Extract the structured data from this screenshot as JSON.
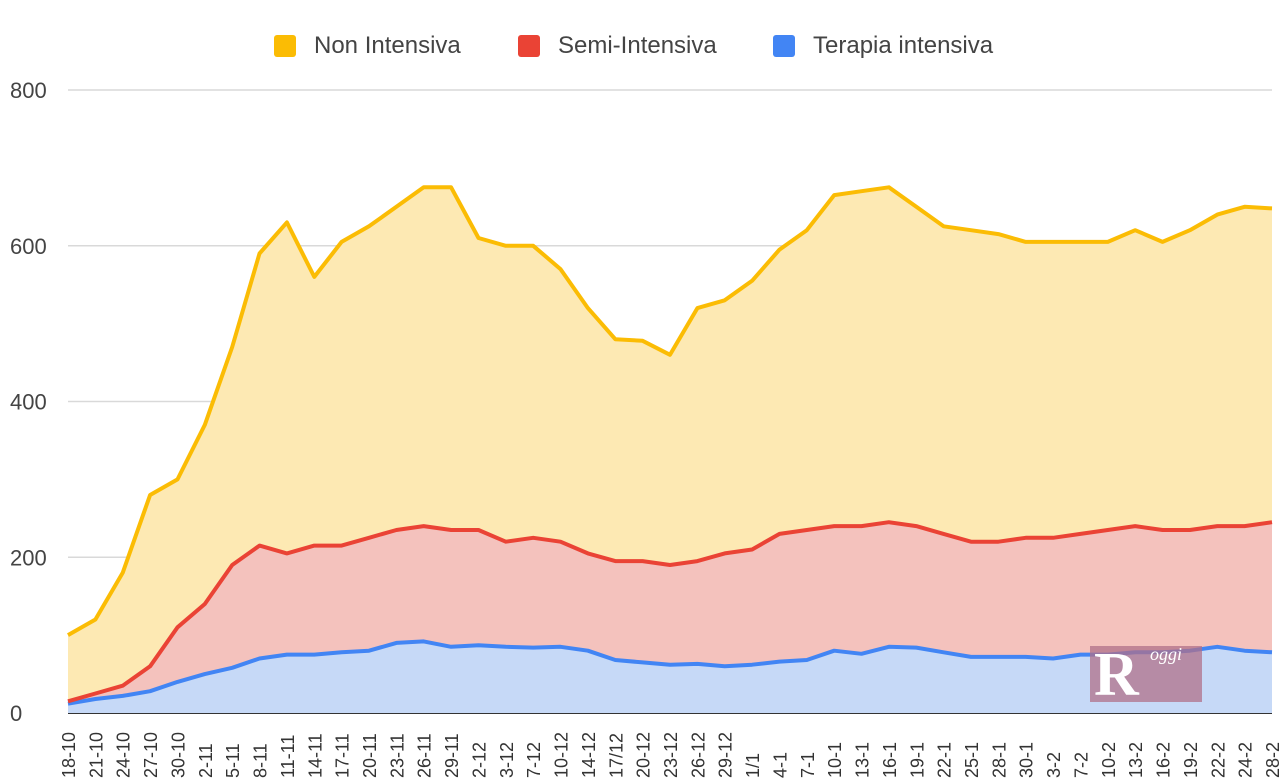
{
  "chart_data": {
    "type": "area",
    "stacked": true,
    "title": "",
    "xlabel": "",
    "ylabel": "",
    "ylim": [
      0,
      800
    ],
    "yticks": [
      0,
      200,
      400,
      600,
      800
    ],
    "grid": true,
    "legend_position": "top",
    "x_tick_labels": [
      "18-10",
      "21-10",
      "24-10",
      "27-10",
      "30-10",
      "2-11",
      "5-11",
      "8-11",
      "11-11",
      "14-11",
      "17-11",
      "20-11",
      "23-11",
      "26-11",
      "29-11",
      "2-12",
      "3-12",
      "7-12",
      "10-12",
      "14-12",
      "17/12",
      "20-12",
      "23-12",
      "26-12",
      "29-12",
      "1/1",
      "4-1",
      "7-1",
      "10-1",
      "13-1",
      "16-1",
      "19-1",
      "22-1",
      "25-1",
      "28-1",
      "30-1",
      "3-2",
      "7-2",
      "10-2",
      "13-2",
      "16-2",
      "19-2",
      "22-2",
      "24-2",
      "28-2"
    ],
    "series": [
      {
        "name": "Terapia intensiva",
        "color": "#4285f4",
        "fill": "#c6d9f7",
        "values": [
          12,
          18,
          22,
          28,
          40,
          50,
          58,
          70,
          75,
          75,
          78,
          80,
          90,
          92,
          85,
          87,
          85,
          84,
          85,
          80,
          68,
          65,
          62,
          63,
          60,
          62,
          66,
          68,
          80,
          76,
          85,
          84,
          78,
          72,
          72,
          72,
          70,
          75,
          75,
          78,
          78,
          80,
          85,
          80,
          78
        ]
      },
      {
        "name": "Semi-Intensiva",
        "color": "#ea4335",
        "fill": "#f4c2bd",
        "values": [
          15,
          25,
          35,
          60,
          110,
          140,
          190,
          215,
          205,
          215,
          215,
          225,
          235,
          240,
          235,
          235,
          220,
          225,
          220,
          205,
          195,
          195,
          190,
          195,
          205,
          210,
          230,
          235,
          240,
          240,
          245,
          240,
          230,
          220,
          220,
          225,
          225,
          230,
          235,
          240,
          235,
          235,
          240,
          240,
          245
        ]
      },
      {
        "name": "Non Intensiva",
        "color": "#fbbc04",
        "fill": "#fde9b3",
        "values": [
          100,
          120,
          180,
          280,
          300,
          370,
          470,
          590,
          630,
          560,
          605,
          625,
          650,
          675,
          675,
          610,
          600,
          600,
          570,
          520,
          480,
          478,
          460,
          520,
          530,
          555,
          595,
          620,
          665,
          670,
          675,
          650,
          625,
          620,
          615,
          605,
          605,
          605,
          605,
          620,
          605,
          620,
          640,
          650,
          648
        ]
      }
    ]
  },
  "legend": {
    "items": [
      {
        "label": "Non Intensiva",
        "color": "#fbbc04"
      },
      {
        "label": "Semi-Intensiva",
        "color": "#ea4335"
      },
      {
        "label": "Terapia intensiva",
        "color": "#4285f4"
      }
    ]
  },
  "watermark": {
    "big": "R",
    "small": "oggi"
  }
}
